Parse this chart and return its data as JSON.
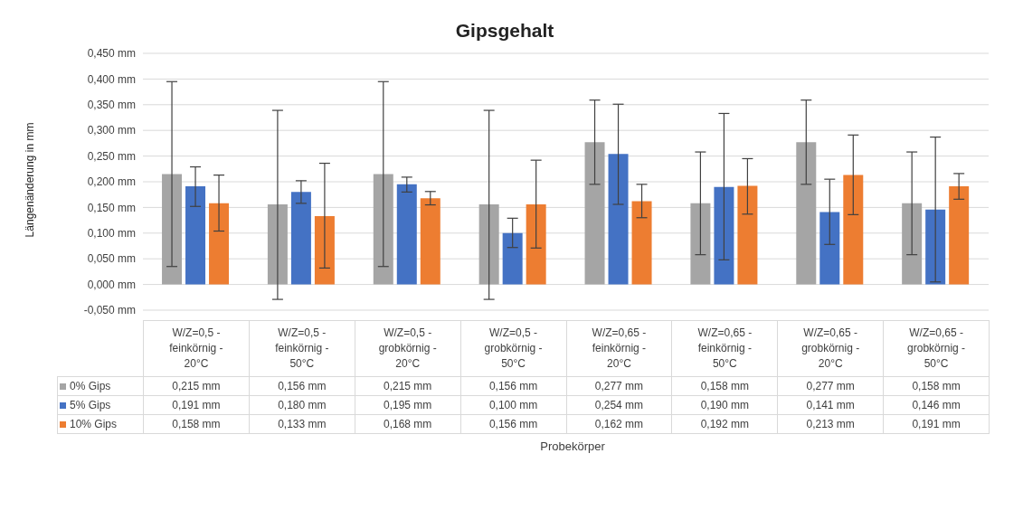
{
  "chart_data": {
    "type": "bar",
    "title": "Gipsgehalt",
    "annotations": [
      "Probekörper"
    ],
    "ylabel": "Längenänderung in mm",
    "categories": [
      "W/Z=0,5 - feinkörnig - 20°C",
      "W/Z=0,5 - feinkörnig - 50°C",
      "W/Z=0,5 - grobkörnig - 20°C",
      "W/Z=0,5 - grobkörnig - 50°C",
      "W/Z=0,65 - feinkörnig - 20°C",
      "W/Z=0,65 - feinkörnig - 50°C",
      "W/Z=0,65 - grobkörnig - 20°C",
      "W/Z=0,65 - grobkörnig - 50°C"
    ],
    "series": [
      {
        "name": "0% Gips",
        "color": "#a5a5a5",
        "values": [
          0.215,
          0.156,
          0.215,
          0.156,
          0.277,
          0.158,
          0.277,
          0.158
        ],
        "value_labels": [
          "0,215 mm",
          "0,156 mm",
          "0,215 mm",
          "0,156 mm",
          "0,277 mm",
          "0,158 mm",
          "0,277 mm",
          "0,158 mm"
        ],
        "errors": [
          [
            0.035,
            0.395
          ],
          [
            -0.029,
            0.339
          ],
          [
            0.035,
            0.395
          ],
          [
            -0.029,
            0.339
          ],
          [
            0.195,
            0.359
          ],
          [
            0.058,
            0.258
          ],
          [
            0.195,
            0.359
          ],
          [
            0.058,
            0.258
          ]
        ]
      },
      {
        "name": "5% Gips",
        "color": "#4472c4",
        "values": [
          0.191,
          0.18,
          0.195,
          0.1,
          0.254,
          0.19,
          0.141,
          0.146
        ],
        "value_labels": [
          "0,191 mm",
          "0,180 mm",
          "0,195 mm",
          "0,100 mm",
          "0,254 mm",
          "0,190 mm",
          "0,141 mm",
          "0,146 mm"
        ],
        "errors": [
          [
            0.152,
            0.229
          ],
          [
            0.158,
            0.202
          ],
          [
            0.18,
            0.209
          ],
          [
            0.072,
            0.129
          ],
          [
            0.156,
            0.351
          ],
          [
            0.048,
            0.333
          ],
          [
            0.078,
            0.205
          ],
          [
            0.005,
            0.287
          ]
        ]
      },
      {
        "name": "10% Gips",
        "color": "#ed7d31",
        "values": [
          0.158,
          0.133,
          0.168,
          0.156,
          0.162,
          0.192,
          0.213,
          0.191
        ],
        "value_labels": [
          "0,158 mm",
          "0,133 mm",
          "0,168 mm",
          "0,156 mm",
          "0,162 mm",
          "0,192 mm",
          "0,213 mm",
          "0,191 mm"
        ],
        "errors": [
          [
            0.104,
            0.213
          ],
          [
            0.032,
            0.236
          ],
          [
            0.155,
            0.181
          ],
          [
            0.071,
            0.242
          ],
          [
            0.13,
            0.195
          ],
          [
            0.137,
            0.245
          ],
          [
            0.136,
            0.291
          ],
          [
            0.166,
            0.216
          ]
        ]
      }
    ],
    "ylim": [
      -0.05,
      0.45
    ],
    "yticks": [
      {
        "value": -0.05,
        "label": "-0,050 mm"
      },
      {
        "value": 0,
        "label": "0,000 mm"
      },
      {
        "value": 0.05,
        "label": "0,050 mm"
      },
      {
        "value": 0.1,
        "label": "0,100 mm"
      },
      {
        "value": 0.15,
        "label": "0,150 mm"
      },
      {
        "value": 0.2,
        "label": "0,200 mm"
      },
      {
        "value": 0.25,
        "label": "0,250 mm"
      },
      {
        "value": 0.3,
        "label": "0,300 mm"
      },
      {
        "value": 0.35,
        "label": "0,350 mm"
      },
      {
        "value": 0.4,
        "label": "0,400 mm"
      },
      {
        "value": 0.45,
        "label": "0,450 mm"
      }
    ],
    "grid": "y",
    "legend": "bottom left"
  }
}
